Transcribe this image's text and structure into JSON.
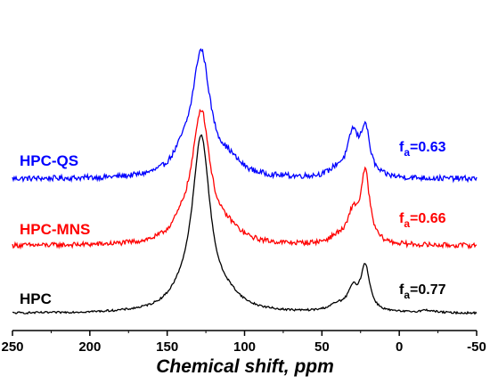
{
  "chart_data": {
    "type": "line",
    "title": "",
    "xlabel": "Chemical shift, ppm",
    "ylabel": "",
    "xlim": [
      250,
      -50
    ],
    "x_reversed": true,
    "x_ticks": [
      250,
      200,
      150,
      100,
      50,
      0,
      -50
    ],
    "grid": false,
    "legend": "inline labels at left and right of each trace",
    "series": [
      {
        "name": "HPC-QS",
        "fa_label": "f",
        "fa_sub": "a",
        "fa_value": "=0.63",
        "color": "#0000ff",
        "peaks": [
          {
            "center": 128,
            "height": 0.98,
            "width": 7
          },
          {
            "center": 140,
            "height": 0.12,
            "width": 8
          },
          {
            "center": 110,
            "height": 0.1,
            "width": 9
          },
          {
            "center": 30,
            "height": 0.33,
            "width": 4
          },
          {
            "center": 22,
            "height": 0.38,
            "width": 3.5
          },
          {
            "center": 40,
            "height": 0.06,
            "width": 6
          }
        ],
        "noise": 0.022
      },
      {
        "name": "HPC-MNS",
        "fa_label": "f",
        "fa_sub": "a",
        "fa_value": "=0.66",
        "color": "#ff0000",
        "peaks": [
          {
            "center": 128,
            "height": 1.05,
            "width": 7
          },
          {
            "center": 140,
            "height": 0.1,
            "width": 8
          },
          {
            "center": 110,
            "height": 0.08,
            "width": 9
          },
          {
            "center": 30,
            "height": 0.22,
            "width": 4
          },
          {
            "center": 22,
            "height": 0.56,
            "width": 3.5
          },
          {
            "center": 40,
            "height": 0.05,
            "width": 6
          }
        ],
        "noise": 0.02
      },
      {
        "name": "HPC",
        "fa_label": "f",
        "fa_sub": "a",
        "fa_value": "=0.77",
        "color": "#000000",
        "peaks": [
          {
            "center": 128,
            "height": 1.38,
            "width": 7
          },
          {
            "center": 140,
            "height": 0.08,
            "width": 10
          },
          {
            "center": 110,
            "height": 0.07,
            "width": 10
          },
          {
            "center": 30,
            "height": 0.16,
            "width": 4
          },
          {
            "center": 22,
            "height": 0.36,
            "width": 3.5
          },
          {
            "center": 40,
            "height": 0.05,
            "width": 7
          },
          {
            "center": -18,
            "height": 0.02,
            "width": 6
          }
        ],
        "noise": 0.008
      }
    ]
  }
}
